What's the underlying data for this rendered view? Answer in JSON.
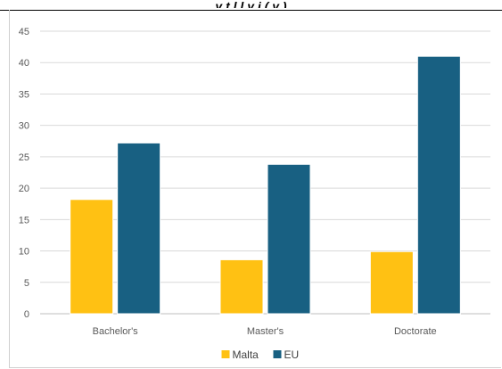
{
  "header": {
    "partial_title": "y   t        l          l    y j     (     y       )"
  },
  "chart_data": {
    "type": "bar",
    "categories": [
      "Bachelor's",
      "Master's",
      "Doctorate"
    ],
    "series": [
      {
        "name": "Malta",
        "values": [
          18.2,
          8.6,
          9.9
        ],
        "color": "#FFC113"
      },
      {
        "name": "EU",
        "values": [
          27.2,
          23.8,
          41.0
        ],
        "color": "#186082"
      }
    ],
    "ylim": [
      0,
      45
    ],
    "yticks": [
      0,
      5,
      10,
      15,
      20,
      25,
      30,
      35,
      40,
      45
    ],
    "grid": true,
    "legend_position": "bottom",
    "title": "",
    "xlabel": "",
    "ylabel": ""
  }
}
